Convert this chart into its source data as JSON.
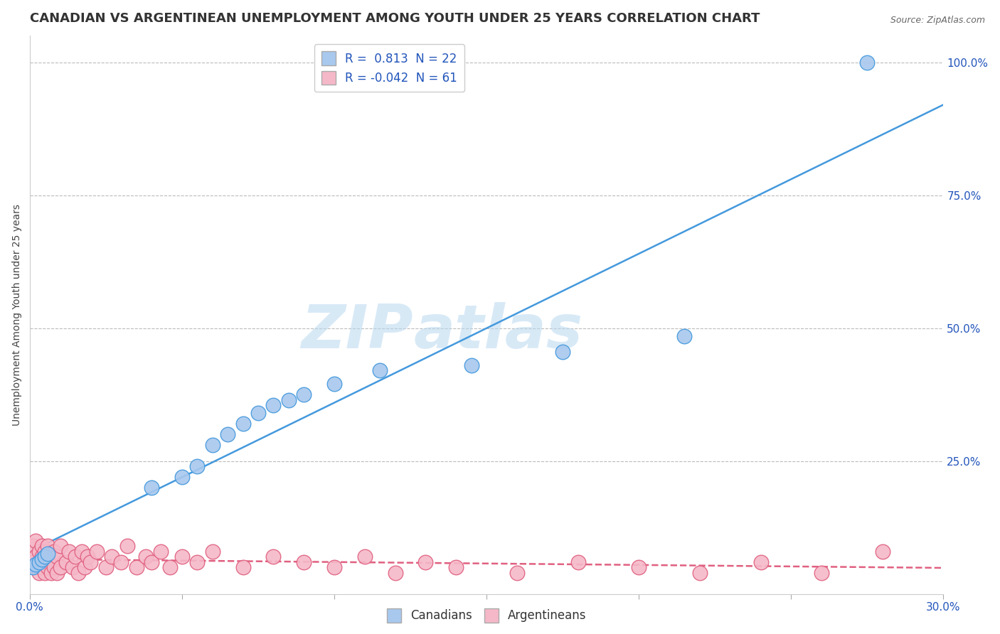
{
  "title": "CANADIAN VS ARGENTINEAN UNEMPLOYMENT AMONG YOUTH UNDER 25 YEARS CORRELATION CHART",
  "source": "Source: ZipAtlas.com",
  "ylabel": "Unemployment Among Youth under 25 years",
  "xlim": [
    0.0,
    0.3
  ],
  "ylim": [
    0.0,
    1.05
  ],
  "xticks": [
    0.0,
    0.05,
    0.1,
    0.15,
    0.2,
    0.25,
    0.3
  ],
  "ytick_vals_right": [
    0.25,
    0.5,
    0.75,
    1.0
  ],
  "canadian_color": "#A8C8EE",
  "argentinean_color": "#F5B8C8",
  "trend_canadian_color": "#4499DD",
  "trend_argentinean_color": "#E06080",
  "background_color": "#FFFFFF",
  "grid_color": "#BBBBBB",
  "r_canadian": 0.813,
  "n_canadian": 22,
  "r_argentinean": -0.042,
  "n_argentinean": 61,
  "canadian_x": [
    0.001,
    0.002,
    0.003,
    0.004,
    0.005,
    0.006,
    0.04,
    0.05,
    0.055,
    0.06,
    0.065,
    0.07,
    0.075,
    0.08,
    0.085,
    0.09,
    0.1,
    0.115,
    0.145,
    0.175,
    0.215,
    0.275
  ],
  "canadian_y": [
    0.05,
    0.055,
    0.06,
    0.065,
    0.07,
    0.075,
    0.2,
    0.22,
    0.24,
    0.28,
    0.3,
    0.32,
    0.34,
    0.355,
    0.365,
    0.375,
    0.395,
    0.42,
    0.43,
    0.455,
    0.485,
    1.0
  ],
  "argentinean_x": [
    0.001,
    0.001,
    0.002,
    0.002,
    0.002,
    0.003,
    0.003,
    0.003,
    0.004,
    0.004,
    0.004,
    0.005,
    0.005,
    0.005,
    0.006,
    0.006,
    0.007,
    0.007,
    0.008,
    0.008,
    0.009,
    0.009,
    0.01,
    0.01,
    0.012,
    0.013,
    0.014,
    0.015,
    0.016,
    0.017,
    0.018,
    0.019,
    0.02,
    0.022,
    0.025,
    0.027,
    0.03,
    0.032,
    0.035,
    0.038,
    0.04,
    0.043,
    0.046,
    0.05,
    0.055,
    0.06,
    0.07,
    0.08,
    0.09,
    0.1,
    0.11,
    0.12,
    0.13,
    0.14,
    0.16,
    0.18,
    0.2,
    0.22,
    0.24,
    0.26,
    0.28
  ],
  "argentinean_y": [
    0.06,
    0.09,
    0.05,
    0.07,
    0.1,
    0.04,
    0.06,
    0.08,
    0.05,
    0.07,
    0.09,
    0.04,
    0.06,
    0.08,
    0.05,
    0.09,
    0.04,
    0.07,
    0.05,
    0.08,
    0.04,
    0.07,
    0.05,
    0.09,
    0.06,
    0.08,
    0.05,
    0.07,
    0.04,
    0.08,
    0.05,
    0.07,
    0.06,
    0.08,
    0.05,
    0.07,
    0.06,
    0.09,
    0.05,
    0.07,
    0.06,
    0.08,
    0.05,
    0.07,
    0.06,
    0.08,
    0.05,
    0.07,
    0.06,
    0.05,
    0.07,
    0.04,
    0.06,
    0.05,
    0.04,
    0.06,
    0.05,
    0.04,
    0.06,
    0.04,
    0.08
  ],
  "watermark_top": "ZIP",
  "watermark_bot": "atlas",
  "title_fontsize": 13,
  "axis_label_fontsize": 10,
  "tick_fontsize": 11,
  "legend_fontsize": 12
}
